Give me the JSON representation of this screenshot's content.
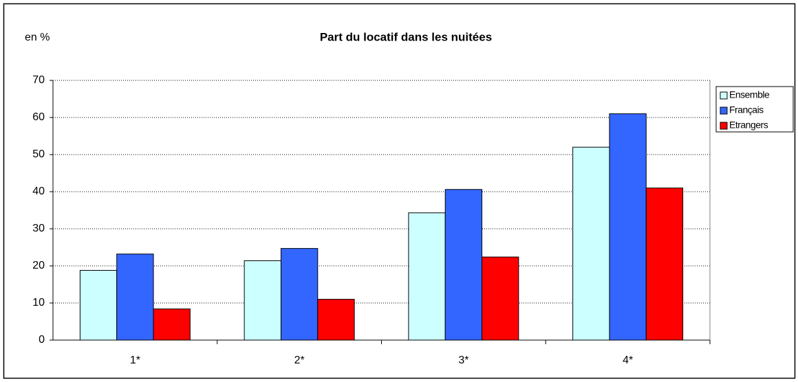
{
  "chart_data": {
    "type": "bar",
    "title": "Part du locatif dans les nuitées",
    "y_label": "en %",
    "categories": [
      "1*",
      "2*",
      "3*",
      "4*"
    ],
    "series": [
      {
        "name": "Ensemble",
        "color": "#ccffff",
        "values": [
          18.8,
          21.4,
          34.3,
          52.0
        ]
      },
      {
        "name": "Français",
        "color": "#3366ff",
        "values": [
          23.2,
          24.7,
          40.6,
          61.0
        ]
      },
      {
        "name": "Etrangers",
        "color": "#ff0000",
        "values": [
          8.4,
          11.0,
          22.4,
          41.0
        ]
      }
    ],
    "ylim": [
      0,
      70
    ],
    "yticks": [
      0,
      10,
      20,
      30,
      40,
      50,
      60,
      70
    ],
    "grid": true,
    "legend": "right"
  }
}
